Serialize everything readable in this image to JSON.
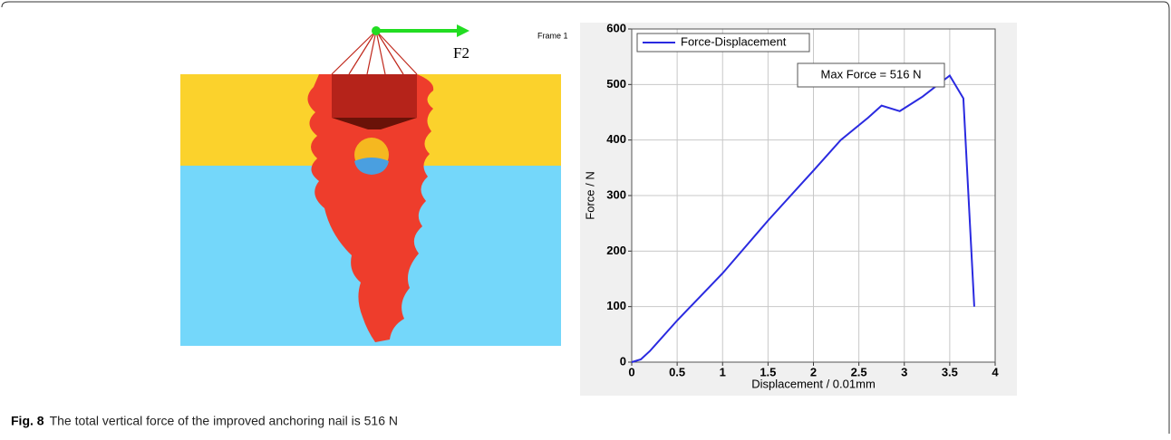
{
  "illustration": {
    "force_label": "F2",
    "frame_label": "Frame 1"
  },
  "chart_data": {
    "type": "line",
    "xlabel": "Displacement / 0.01mm",
    "ylabel": "Force / N",
    "annotation": "Max Force = 516 N",
    "x": [
      0,
      0.1,
      0.2,
      0.5,
      1,
      1.5,
      2,
      2.3,
      2.6,
      2.75,
      2.95,
      3.2,
      3.5,
      3.65,
      3.77
    ],
    "series": [
      {
        "name": "Force-Displacement",
        "color": "#2a2ae0",
        "values": [
          0,
          5,
          20,
          75,
          160,
          255,
          345,
          400,
          440,
          462,
          452,
          478,
          516,
          475,
          100
        ]
      }
    ],
    "xlim": [
      0,
      4
    ],
    "ylim": [
      0,
      600
    ],
    "xticks": [
      0,
      0.5,
      1,
      1.5,
      2,
      2.5,
      3,
      3.5,
      4
    ],
    "yticks": [
      0,
      100,
      200,
      300,
      400,
      500,
      600
    ],
    "grid": true,
    "legend": "upper left"
  },
  "caption": {
    "label": "Fig. 8",
    "text": "The total vertical force of the improved anchoring nail is 516 N"
  }
}
